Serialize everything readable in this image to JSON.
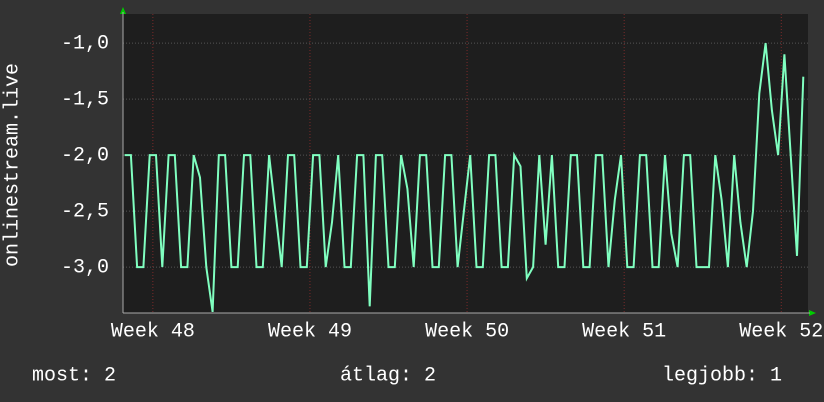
{
  "chart_data": {
    "type": "line",
    "ylabel": "onlinestream.live",
    "xlim": [
      47.81,
      52.17
    ],
    "ylim": [
      -3.41,
      -0.74
    ],
    "xticks": [
      {
        "value": 48,
        "label": "Week 48"
      },
      {
        "value": 49,
        "label": "Week 49"
      },
      {
        "value": 50,
        "label": "Week 50"
      },
      {
        "value": 51,
        "label": "Week 51"
      },
      {
        "value": 52,
        "label": "Week 52"
      }
    ],
    "yticks": [
      {
        "value": -3.0,
        "label": "-3,0"
      },
      {
        "value": -2.5,
        "label": "-2,5"
      },
      {
        "value": -2.0,
        "label": "-2,0"
      },
      {
        "value": -1.5,
        "label": "-1,5"
      },
      {
        "value": -1.0,
        "label": "-1,0"
      }
    ],
    "grid": true,
    "x": [
      47.82,
      47.86,
      47.9,
      47.94,
      47.98,
      48.02,
      48.06,
      48.1,
      48.14,
      48.18,
      48.22,
      48.26,
      48.3,
      48.34,
      48.38,
      48.42,
      48.46,
      48.5,
      48.54,
      48.58,
      48.62,
      48.66,
      48.7,
      48.74,
      48.78,
      48.82,
      48.86,
      48.9,
      48.94,
      48.98,
      49.02,
      49.06,
      49.1,
      49.14,
      49.18,
      49.22,
      49.26,
      49.3,
      49.34,
      49.38,
      49.42,
      49.46,
      49.5,
      49.54,
      49.58,
      49.62,
      49.66,
      49.7,
      49.74,
      49.78,
      49.82,
      49.86,
      49.9,
      49.94,
      49.98,
      50.02,
      50.06,
      50.1,
      50.14,
      50.18,
      50.22,
      50.26,
      50.3,
      50.34,
      50.38,
      50.42,
      50.46,
      50.5,
      50.54,
      50.58,
      50.62,
      50.66,
      50.7,
      50.74,
      50.78,
      50.82,
      50.86,
      50.9,
      50.94,
      50.98,
      51.02,
      51.06,
      51.1,
      51.14,
      51.18,
      51.22,
      51.26,
      51.3,
      51.34,
      51.38,
      51.42,
      51.46,
      51.5,
      51.54,
      51.58,
      51.62,
      51.66,
      51.7,
      51.74,
      51.78,
      51.82,
      51.86,
      51.9,
      51.94,
      51.98,
      52.02,
      52.06,
      52.1,
      52.14
    ],
    "series": [
      {
        "color": "#80ffc0",
        "values": [
          -2.0,
          -2.0,
          -3.0,
          -3.0,
          -2.0,
          -2.0,
          -3.0,
          -2.0,
          -2.0,
          -3.0,
          -3.0,
          -2.0,
          -2.2,
          -3.0,
          -3.4,
          -2.0,
          -2.0,
          -3.0,
          -3.0,
          -2.0,
          -2.0,
          -3.0,
          -3.0,
          -2.0,
          -2.5,
          -3.0,
          -2.0,
          -2.0,
          -3.0,
          -3.0,
          -2.0,
          -2.0,
          -3.0,
          -2.6,
          -2.0,
          -3.0,
          -3.0,
          -2.0,
          -2.0,
          -3.35,
          -2.0,
          -2.0,
          -3.0,
          -3.0,
          -2.0,
          -2.3,
          -3.0,
          -2.0,
          -2.0,
          -3.0,
          -3.0,
          -2.0,
          -2.0,
          -3.0,
          -2.5,
          -2.0,
          -3.0,
          -3.0,
          -2.0,
          -2.0,
          -3.0,
          -3.0,
          -2.0,
          -2.1,
          -3.1,
          -3.0,
          -2.0,
          -2.8,
          -2.0,
          -3.0,
          -3.0,
          -2.0,
          -2.0,
          -3.0,
          -3.0,
          -2.0,
          -2.0,
          -3.0,
          -2.4,
          -2.0,
          -3.0,
          -3.0,
          -2.0,
          -2.0,
          -3.0,
          -3.0,
          -2.0,
          -2.7,
          -3.0,
          -2.0,
          -2.0,
          -3.0,
          -3.0,
          -3.0,
          -2.0,
          -2.4,
          -3.0,
          -2.0,
          -2.6,
          -3.0,
          -2.5,
          -1.45,
          -1.0,
          -1.6,
          -2.0,
          -1.1,
          -2.0,
          -2.9,
          -1.3
        ]
      }
    ]
  },
  "footer": {
    "current": "most: 2",
    "average": "átlag: 2",
    "best": "legjobb: 1"
  }
}
